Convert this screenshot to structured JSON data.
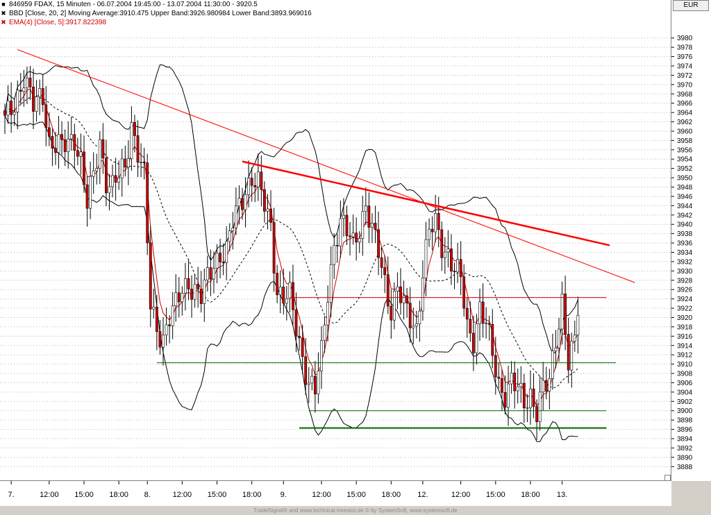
{
  "legend": {
    "symbol_line": "846959  FDAX, 15 Minuten - 06.07.2004 19:45:00 - 13.07.2004 11:30:00 - 3920.5",
    "bbd_line": "BBD [Close, 20, 2] Moving Average:3910.475 Upper Band:3926.980984 Lower Band:3893.969016",
    "ema_line": "EMA(4) [Close, 5]:3917.822398"
  },
  "currency": "EUR",
  "footer": "TradeSignal® and www.technical-investor.de © by SystemSoft, www.systemsoft.de",
  "colors": {
    "candle_up": "#ffffff",
    "candle_down": "#cc0000",
    "ema": "#cc0000",
    "trendline": "#ff0000",
    "support": "#006600",
    "band": "#000000"
  },
  "chart_data": {
    "type": "candlestick",
    "instrument": "FDAX",
    "interval": "15 Minuten",
    "ylim": [
      3887,
      3983
    ],
    "y_ticks": [
      3980,
      3978,
      3976,
      3974,
      3972,
      3970,
      3968,
      3966,
      3964,
      3962,
      3960,
      3958,
      3956,
      3954,
      3952,
      3950,
      3948,
      3946,
      3944,
      3942,
      3940,
      3938,
      3936,
      3934,
      3932,
      3930,
      3928,
      3926,
      3924,
      3922,
      3920,
      3918,
      3916,
      3914,
      3912,
      3910,
      3908,
      3906,
      3904,
      3902,
      3900,
      3898,
      3896,
      3894,
      3892,
      3890,
      3888
    ],
    "x_ticks": [
      "7.",
      "12:00",
      "15:00",
      "18:00",
      "8.",
      "12:00",
      "15:00",
      "18:00",
      "9.",
      "12:00",
      "15:00",
      "18:00",
      "12.",
      "12:00",
      "15:00",
      "18:00",
      "13."
    ],
    "x_tick_bars": [
      2,
      14,
      25,
      36,
      45,
      56,
      67,
      78,
      88,
      100,
      111,
      122,
      132,
      144,
      155,
      166,
      176
    ],
    "bars_count": 182,
    "close_anchors": [
      [
        0,
        3962
      ],
      [
        3,
        3966
      ],
      [
        6,
        3972
      ],
      [
        9,
        3965
      ],
      [
        12,
        3968
      ],
      [
        14,
        3958
      ],
      [
        18,
        3956
      ],
      [
        22,
        3959
      ],
      [
        24,
        3954
      ],
      [
        26,
        3944
      ],
      [
        28,
        3950
      ],
      [
        30,
        3958
      ],
      [
        32,
        3950
      ],
      [
        34,
        3948
      ],
      [
        36,
        3950
      ],
      [
        38,
        3952
      ],
      [
        40,
        3962
      ],
      [
        44,
        3950
      ],
      [
        46,
        3922
      ],
      [
        48,
        3918
      ],
      [
        50,
        3916
      ],
      [
        52,
        3920
      ],
      [
        54,
        3922
      ],
      [
        56,
        3926
      ],
      [
        58,
        3928
      ],
      [
        60,
        3926
      ],
      [
        62,
        3924
      ],
      [
        64,
        3928
      ],
      [
        66,
        3932
      ],
      [
        68,
        3934
      ],
      [
        70,
        3934
      ],
      [
        72,
        3940
      ],
      [
        74,
        3944
      ],
      [
        76,
        3948
      ],
      [
        78,
        3950
      ],
      [
        80,
        3948
      ],
      [
        82,
        3944
      ],
      [
        84,
        3940
      ],
      [
        86,
        3926
      ],
      [
        88,
        3924
      ],
      [
        90,
        3924
      ],
      [
        92,
        3918
      ],
      [
        94,
        3912
      ],
      [
        96,
        3906
      ],
      [
        98,
        3904
      ],
      [
        100,
        3912
      ],
      [
        102,
        3926
      ],
      [
        104,
        3936
      ],
      [
        106,
        3940
      ],
      [
        108,
        3938
      ],
      [
        110,
        3936
      ],
      [
        112,
        3940
      ],
      [
        114,
        3944
      ],
      [
        116,
        3938
      ],
      [
        118,
        3934
      ],
      [
        120,
        3928
      ],
      [
        122,
        3922
      ],
      [
        124,
        3926
      ],
      [
        126,
        3922
      ],
      [
        128,
        3920
      ],
      [
        130,
        3918
      ],
      [
        132,
        3930
      ],
      [
        134,
        3938
      ],
      [
        136,
        3940
      ],
      [
        138,
        3936
      ],
      [
        140,
        3934
      ],
      [
        142,
        3930
      ],
      [
        144,
        3928
      ],
      [
        146,
        3918
      ],
      [
        148,
        3916
      ],
      [
        150,
        3922
      ],
      [
        152,
        3918
      ],
      [
        154,
        3912
      ],
      [
        156,
        3906
      ],
      [
        158,
        3904
      ],
      [
        160,
        3906
      ],
      [
        162,
        3904
      ],
      [
        164,
        3902
      ],
      [
        166,
        3904
      ],
      [
        168,
        3900
      ],
      [
        170,
        3904
      ],
      [
        172,
        3906
      ],
      [
        174,
        3916
      ],
      [
        176,
        3924
      ],
      [
        178,
        3910
      ],
      [
        180,
        3914
      ],
      [
        181,
        3920.5
      ]
    ],
    "bollinger": {
      "period": 20,
      "stddev": 2,
      "moving_average": 3910.475,
      "upper_band": 3926.980984,
      "lower_band": 3893.969016
    },
    "ema": {
      "period": 4,
      "value": 3917.822398
    },
    "trendlines": [
      {
        "from": [
          4,
          3977.5
        ],
        "to": [
          199,
          3927.5
        ],
        "color": "#ff0000",
        "width": 1
      },
      {
        "from": [
          75,
          3953.5
        ],
        "to": [
          191,
          3935.5
        ],
        "color": "#ff0000",
        "width": 2.5
      }
    ],
    "horizontal_lines": [
      {
        "y": 3924.3,
        "from_bar": 90,
        "to_bar": 190,
        "color": "#cc0000",
        "width": 1
      },
      {
        "y": 3910.3,
        "from_bar": 48,
        "to_bar": 193,
        "color": "#006600",
        "width": 1
      },
      {
        "y": 3900.0,
        "from_bar": 96,
        "to_bar": 190,
        "color": "#006600",
        "width": 1
      },
      {
        "y": 3896.3,
        "from_bar": 93,
        "to_bar": 190,
        "color": "#006600",
        "width": 2
      }
    ]
  }
}
